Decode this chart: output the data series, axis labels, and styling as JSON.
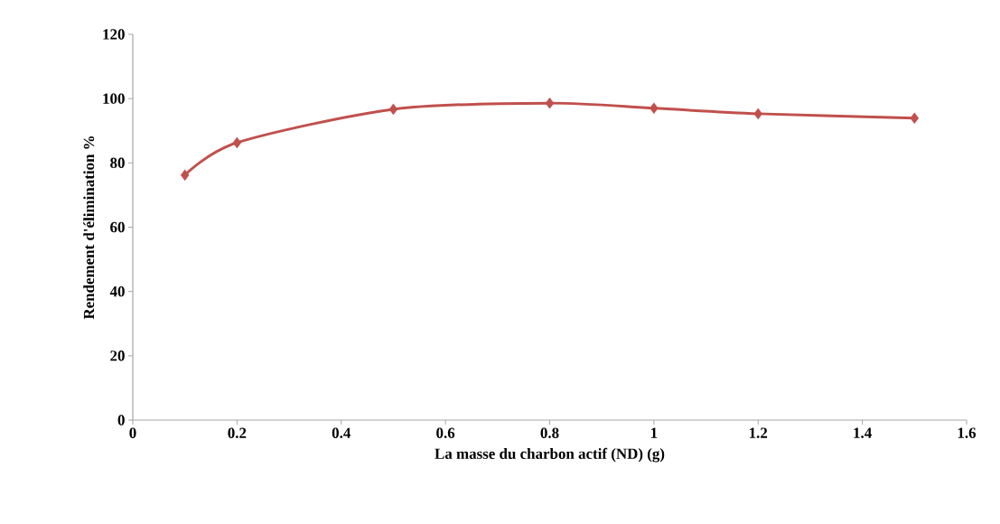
{
  "chart_data": {
    "type": "line",
    "xlabel": "La masse du charbon actif (ND) (g)",
    "ylabel": "Rendement d'élimination %",
    "x": [
      0.1,
      0.2,
      0.5,
      0.8,
      1.0,
      1.2,
      1.5
    ],
    "values": [
      76.2,
      86.3,
      96.7,
      98.6,
      97.0,
      95.3,
      93.9
    ],
    "color": "#c0504d",
    "marker": "diamond",
    "xlim": [
      0,
      1.6
    ],
    "ylim": [
      0,
      120
    ],
    "xticks": [
      0,
      0.2,
      0.4,
      0.6,
      0.8,
      1,
      1.2,
      1.4,
      1.6
    ],
    "yticks": [
      0,
      20,
      40,
      60,
      80,
      100,
      120
    ]
  }
}
